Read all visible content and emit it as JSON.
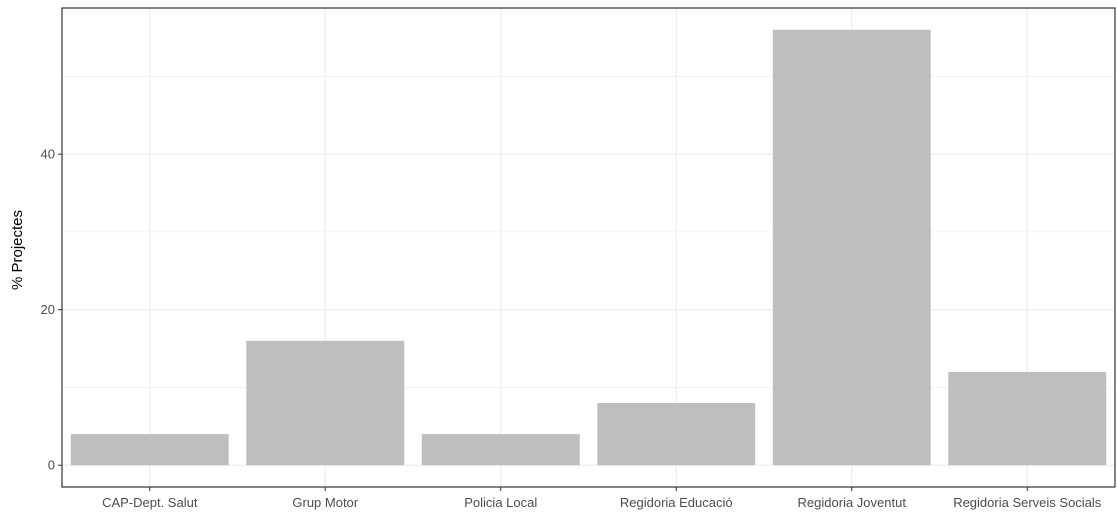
{
  "chart_data": {
    "type": "bar",
    "categories": [
      "CAP-Dept. Salut",
      "Grup Motor",
      "Policia Local",
      "Regidoria Educació",
      "Regidoria Joventut",
      "Regidoria Serveis Socials"
    ],
    "values": [
      4,
      16,
      4,
      8,
      56,
      12
    ],
    "title": "",
    "xlabel": "",
    "ylabel": "% Projectes",
    "ylim": [
      -2.8,
      58.8
    ],
    "yticks": [
      0,
      20,
      40
    ],
    "grid": true,
    "legend": "none",
    "bar_color": "#bebebe",
    "grid_color": "#ebebeb",
    "panel_border_color": "#333333"
  }
}
